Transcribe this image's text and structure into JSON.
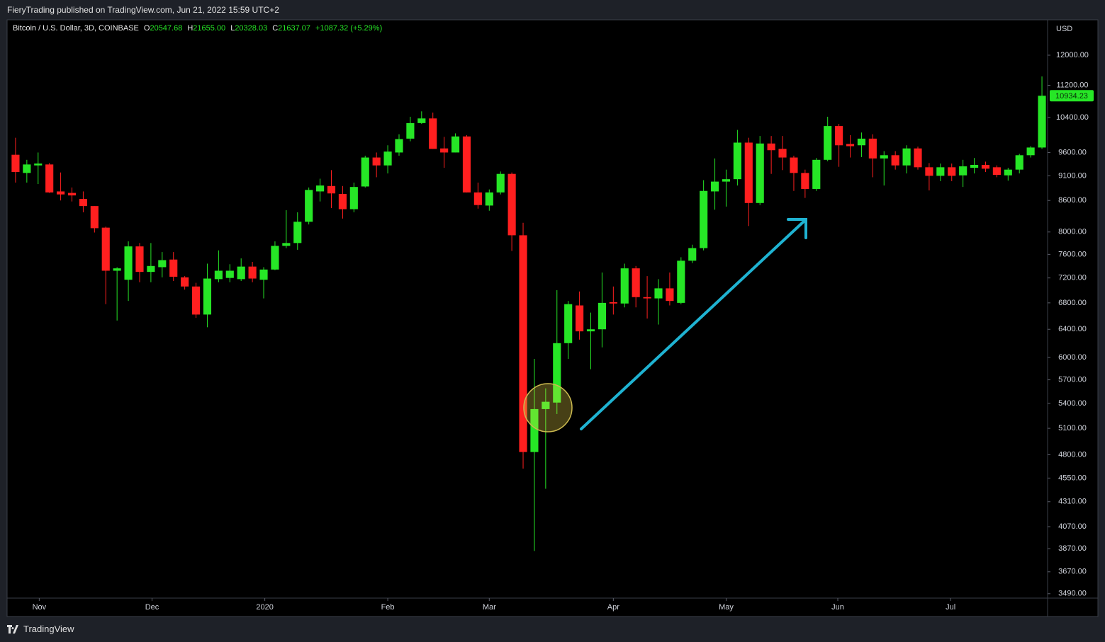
{
  "header": {
    "publisher": "FieryTrading published on TradingView.com, Jun 21, 2022 15:59 UTC+2"
  },
  "footer": {
    "brand": "TradingView"
  },
  "chart_data": {
    "type": "candlestick",
    "legend": {
      "symbol": "Bitcoin / U.S. Dollar, 3D, COINBASE",
      "ohlc": [
        {
          "label": "O",
          "value": "20547.68"
        },
        {
          "label": "H",
          "value": "21655.00"
        },
        {
          "label": "L",
          "value": "20328.03"
        },
        {
          "label": "C",
          "value": "21637.07"
        }
      ],
      "change": "+1087.32 (+5.29%)"
    },
    "y_unit": "USD",
    "log_scale": true,
    "up_color": "#26e626",
    "down_color": "#ff1f1f",
    "open": [
      9550,
      9160,
      9320,
      9340,
      8780,
      8750,
      8630,
      8490,
      8080,
      7320,
      7170,
      7740,
      7300,
      7380,
      7510,
      7210,
      7060,
      6620,
      7180,
      7200,
      7180,
      7390,
      7170,
      7340,
      7750,
      7800,
      8190,
      8780,
      8890,
      8730,
      8430,
      8880,
      9490,
      9320,
      9600,
      9910,
      10270,
      10380,
      9690,
      9600,
      9960,
      8760,
      8500,
      8760,
      9140,
      7940,
      4830,
      5330,
      5410,
      6200,
      6760,
      6370,
      6400,
      6810,
      6790,
      7360,
      6890,
      6870,
      7030,
      6800,
      7490,
      7710,
      8780,
      8980,
      9030,
      9820,
      8550,
      9800,
      9680,
      9490,
      9160,
      8830,
      9440,
      10200,
      9790,
      9760,
      9910,
      9470,
      9540,
      9320,
      9690,
      9280,
      9100,
      9280,
      9110,
      9270,
      9330,
      9280,
      9110,
      9230,
      9540,
      9710
    ],
    "high": [
      9930,
      9440,
      9600,
      9370,
      9170,
      8860,
      8780,
      8490,
      8100,
      7380,
      7830,
      7800,
      7800,
      7640,
      7640,
      7230,
      7120,
      7440,
      7670,
      7430,
      7530,
      7470,
      7380,
      7830,
      8410,
      8370,
      8860,
      9040,
      9220,
      8890,
      8960,
      9530,
      9600,
      9760,
      10010,
      10420,
      10550,
      10520,
      9950,
      10030,
      9990,
      8960,
      8820,
      9190,
      9170,
      8170,
      5980,
      5590,
      7000,
      6830,
      6980,
      6650,
      7290,
      7060,
      7440,
      7400,
      7230,
      7180,
      7290,
      7550,
      7770,
      9010,
      9470,
      9230,
      10110,
      9930,
      9970,
      9970,
      9970,
      9530,
      9230,
      9480,
      10420,
      10250,
      9990,
      10050,
      10010,
      9630,
      9630,
      9760,
      9730,
      9370,
      9360,
      9360,
      9440,
      9480,
      9400,
      9320,
      9270,
      9570,
      9740,
      11430
    ],
    "low": [
      8960,
      8960,
      8930,
      8750,
      8600,
      8580,
      8370,
      7990,
      6780,
      6530,
      6830,
      7130,
      7130,
      7210,
      7150,
      7010,
      6570,
      6430,
      7130,
      7130,
      7150,
      7130,
      6870,
      7330,
      7710,
      7680,
      8140,
      8580,
      8450,
      8250,
      8370,
      8860,
      9070,
      9150,
      9530,
      9850,
      10250,
      9680,
      9270,
      9600,
      8760,
      8440,
      8400,
      8720,
      7660,
      4650,
      3850,
      4440,
      5270,
      5980,
      6250,
      5840,
      6140,
      6620,
      6730,
      6730,
      6560,
      6470,
      6760,
      6780,
      7450,
      7670,
      8420,
      8480,
      8900,
      8110,
      8510,
      9140,
      9220,
      8790,
      8650,
      8790,
      9410,
      9290,
      9490,
      9500,
      9070,
      8900,
      9230,
      9150,
      9230,
      8800,
      8990,
      8990,
      8870,
      9150,
      9180,
      9070,
      9000,
      9150,
      9490,
      9680
    ],
    "close": [
      9180,
      9340,
      9360,
      8760,
      8720,
      8700,
      8490,
      8070,
      7320,
      7360,
      7740,
      7300,
      7400,
      7500,
      7220,
      7060,
      6620,
      7190,
      7320,
      7320,
      7390,
      7190,
      7340,
      7750,
      7800,
      8190,
      8810,
      8900,
      8740,
      8430,
      8870,
      9490,
      9320,
      9620,
      9900,
      10270,
      10380,
      9680,
      9600,
      9960,
      8760,
      8510,
      8760,
      9140,
      7940,
      4830,
      5330,
      5420,
      6200,
      6780,
      6370,
      6400,
      6800,
      6790,
      7360,
      6890,
      6870,
      7030,
      6830,
      7490,
      7710,
      8790,
      8980,
      9030,
      9820,
      8550,
      9800,
      9650,
      9490,
      9160,
      8830,
      9440,
      10200,
      9760,
      9740,
      9910,
      9470,
      9540,
      9320,
      9690,
      9280,
      9100,
      9280,
      9100,
      9300,
      9330,
      9250,
      9120,
      9230,
      9540,
      9710,
      10934.23
    ],
    "last_price": 10934.23,
    "xlim": [
      -0.75,
      91.5
    ],
    "xticks": [
      {
        "value": 2.1,
        "label": "Nov"
      },
      {
        "value": 12.1,
        "label": "Dec"
      },
      {
        "value": 22.1,
        "label": "2020"
      },
      {
        "value": 33.0,
        "label": "Feb"
      },
      {
        "value": 42.0,
        "label": "Mar"
      },
      {
        "value": 53.0,
        "label": "Apr"
      },
      {
        "value": 63.0,
        "label": "May"
      },
      {
        "value": 72.9,
        "label": "Jun"
      },
      {
        "value": 82.9,
        "label": "Jul"
      }
    ],
    "ylim": [
      3455,
      13014
    ],
    "yticks": [
      {
        "value": 3490,
        "label": "3490.00"
      },
      {
        "value": 3670,
        "label": "3670.00"
      },
      {
        "value": 3870,
        "label": "3870.00"
      },
      {
        "value": 4070,
        "label": "4070.00"
      },
      {
        "value": 4310,
        "label": "4310.00"
      },
      {
        "value": 4550,
        "label": "4550.00"
      },
      {
        "value": 4800,
        "label": "4800.00"
      },
      {
        "value": 5100,
        "label": "5100.00"
      },
      {
        "value": 5400,
        "label": "5400.00"
      },
      {
        "value": 5700,
        "label": "5700.00"
      },
      {
        "value": 6000,
        "label": "6000.00"
      },
      {
        "value": 6400,
        "label": "6400.00"
      },
      {
        "value": 6800,
        "label": "6800.00"
      },
      {
        "value": 7200,
        "label": "7200.00"
      },
      {
        "value": 7600,
        "label": "7600.00"
      },
      {
        "value": 8000,
        "label": "8000.00"
      },
      {
        "value": 8600,
        "label": "8600.00"
      },
      {
        "value": 9100,
        "label": "9100.00"
      },
      {
        "value": 9600,
        "label": "9600.00"
      },
      {
        "value": 10400,
        "label": "10400.00"
      },
      {
        "value": 11200,
        "label": "11200.00"
      },
      {
        "value": 12000,
        "label": "12000.00"
      }
    ]
  }
}
